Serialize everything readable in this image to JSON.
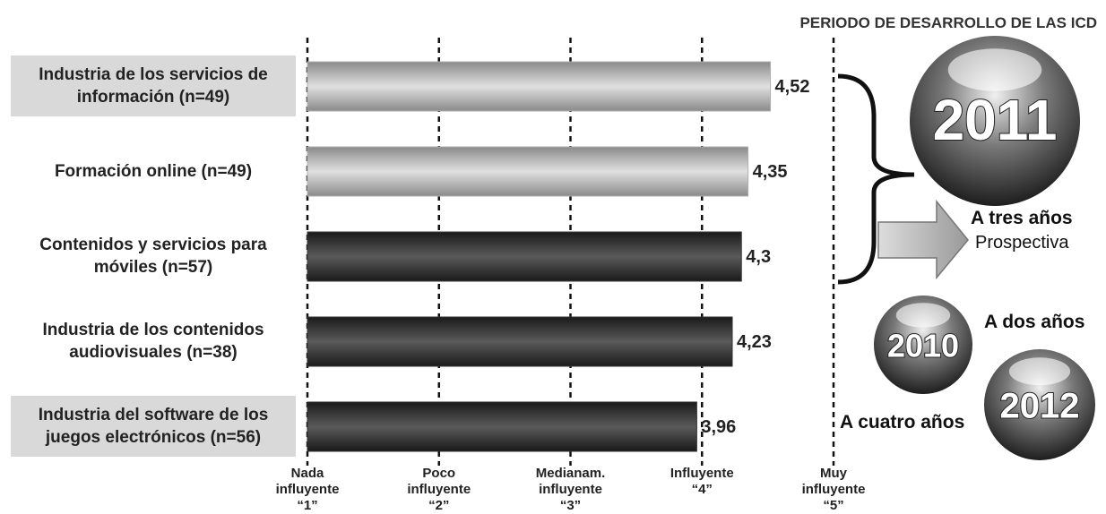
{
  "chart_data": {
    "type": "bar",
    "orientation": "horizontal",
    "categories": [
      "Industria de los servicios de información (n=49)",
      "Formación online (n=49)",
      "Contenidos y servicios para móviles (n=57)",
      "Industria de los contenidos audiovisuales (n=38)",
      "Industria del software de los juegos electrónicos (n=56)"
    ],
    "values": [
      4.52,
      4.35,
      4.3,
      4.23,
      3.96
    ],
    "value_labels": [
      "4,52",
      "4,35",
      "4,3",
      "4,23",
      "3,96"
    ],
    "colors": [
      "#b0b0b0",
      "#b0b0b0",
      "#3a3a3a",
      "#333333",
      "#2e2e2e"
    ],
    "highlighted_categories": [
      0,
      4
    ],
    "xlim": [
      1,
      5
    ],
    "xticks": [
      {
        "value": 1,
        "label": "Nada influyente “1”"
      },
      {
        "value": 2,
        "label": "Poco influyente “2”"
      },
      {
        "value": 3,
        "label": "Medianam. influyente “3”"
      },
      {
        "value": 4,
        "label": "Influyente “4”"
      },
      {
        "value": 5,
        "label": "Muy influyente “5”"
      }
    ],
    "grid": true,
    "sidebar_title": "PERIODO DE DESARROLLO DE LAS ICD",
    "periods": [
      {
        "year": "2011",
        "label": "A tres años",
        "note": "Prospectiva"
      },
      {
        "year": "2010",
        "label": "A dos años"
      },
      {
        "year": "2012",
        "label": "A cuatro años"
      }
    ]
  }
}
